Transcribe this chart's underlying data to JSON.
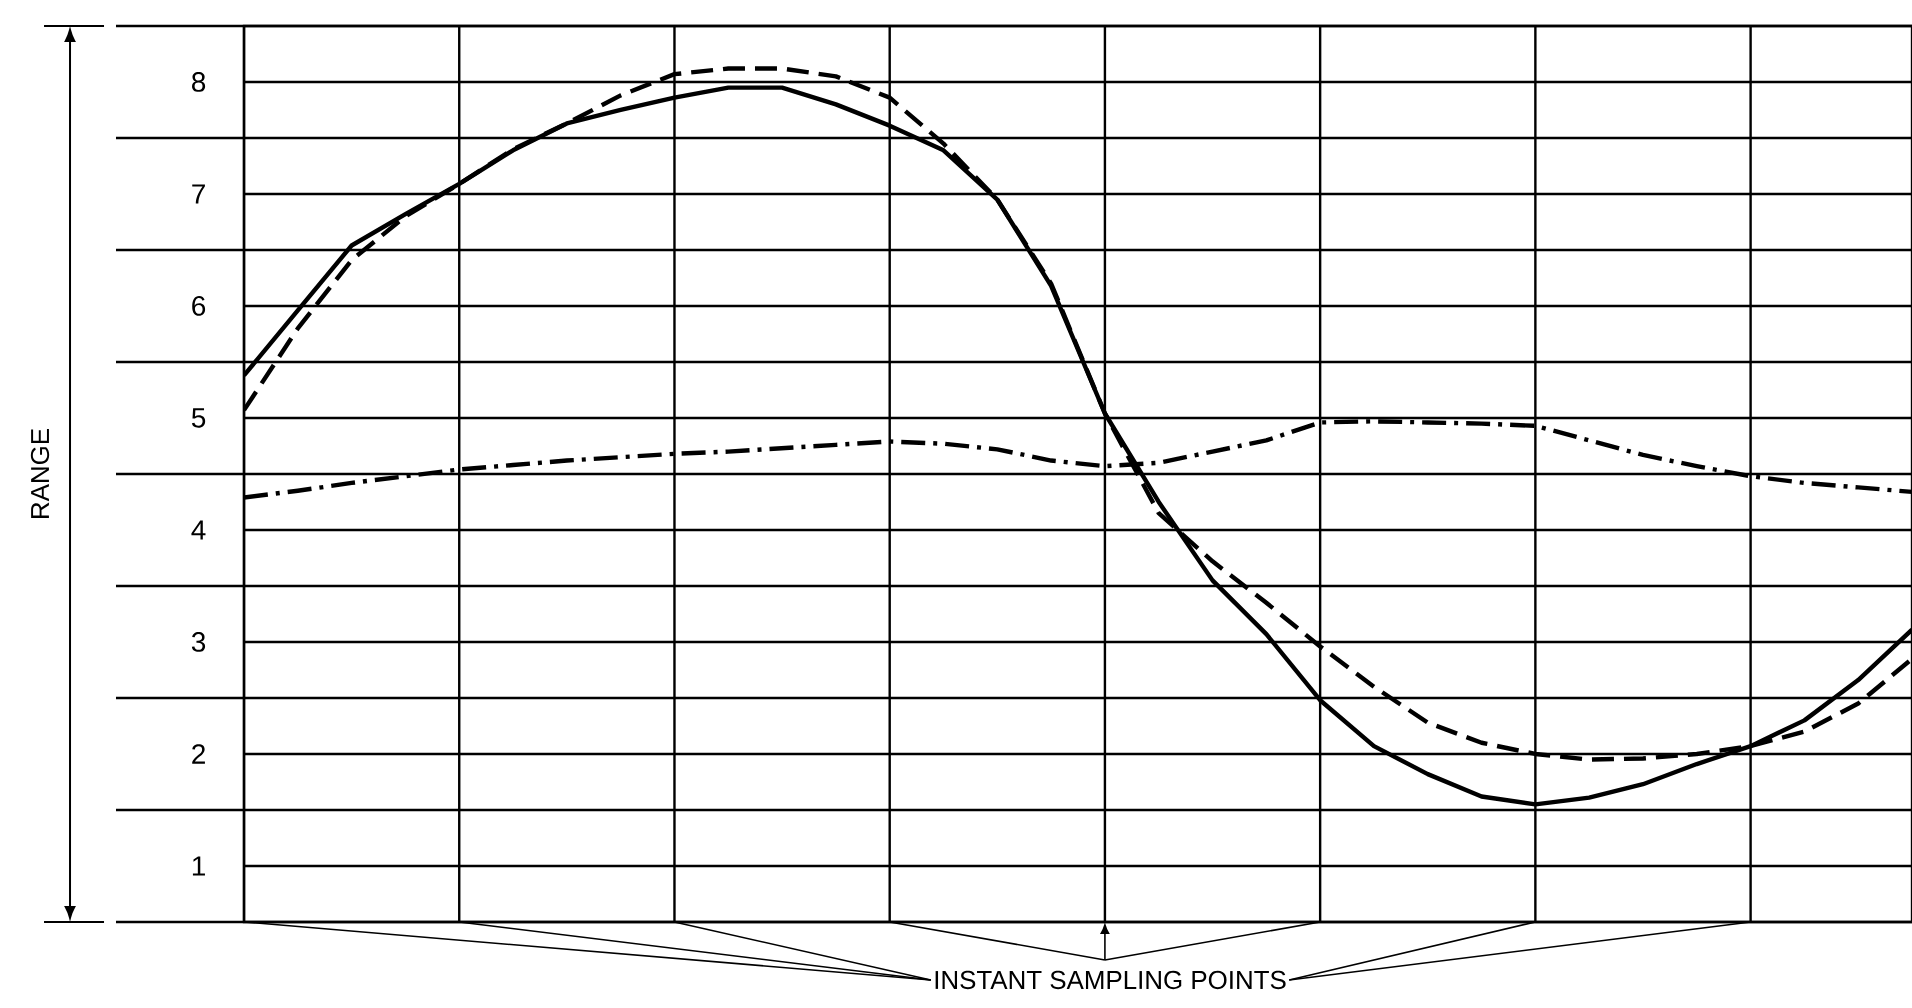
{
  "chart_data": {
    "type": "line",
    "annotations": [
      "INSTANT SAMPLING POINTS",
      "RANGE"
    ],
    "grid": true,
    "tick_labels": "y",
    "categories": [
      null,
      null,
      null,
      null,
      null,
      null,
      null,
      null,
      null,
      null,
      null,
      null,
      null,
      null,
      null,
      null,
      null,
      null,
      null,
      null,
      null,
      null,
      null,
      null,
      null,
      null,
      null,
      null,
      null,
      null,
      null,
      null
    ],
    "ylim": [
      0.5,
      8.5
    ],
    "yticks": [
      {
        "value": 0.5,
        "label": null
      },
      1,
      {
        "value": 1.5,
        "label": null
      },
      2,
      {
        "value": 2.5,
        "label": null
      },
      3,
      {
        "value": 3.5,
        "label": null
      },
      4,
      {
        "value": 4.5,
        "label": null
      },
      5,
      {
        "value": 5.5,
        "label": null
      },
      6,
      {
        "value": 6.5,
        "label": null
      },
      7,
      {
        "value": 7.5,
        "label": null
      },
      8,
      {
        "value": 8.5,
        "label": null
      }
    ],
    "series": [
      {
        "color": "#000000",
        "line_style": "solid",
        "values": [
          5.38,
          5.96,
          6.54,
          6.82,
          7.09,
          7.39,
          7.63,
          7.75,
          7.86,
          7.95,
          7.95,
          7.8,
          7.61,
          7.39,
          6.95,
          6.18,
          5.04,
          4.25,
          3.55,
          3.07,
          2.48,
          2.07,
          1.82,
          1.62,
          1.55,
          1.61,
          1.73,
          1.91,
          2.07,
          2.3,
          2.66,
          3.11
        ]
      },
      {
        "color": "#000000",
        "line_style": "dashed",
        "values": [
          5.07,
          5.8,
          6.41,
          6.8,
          7.09,
          7.4,
          7.63,
          7.88,
          8.07,
          8.12,
          8.12,
          8.05,
          7.86,
          7.45,
          6.95,
          6.2,
          5.04,
          4.15,
          3.72,
          3.35,
          2.96,
          2.6,
          2.28,
          2.1,
          2.0,
          1.95,
          1.96,
          2.0,
          2.07,
          2.2,
          2.45,
          2.85
        ]
      },
      {
        "color": "#000000",
        "line_style": "dashdot",
        "values": [
          4.29,
          4.35,
          4.42,
          4.48,
          4.54,
          4.58,
          4.62,
          4.65,
          4.68,
          4.7,
          4.73,
          4.76,
          4.79,
          4.77,
          4.72,
          4.62,
          4.57,
          4.6,
          4.7,
          4.8,
          4.96,
          4.97,
          4.96,
          4.95,
          4.93,
          4.8,
          4.67,
          4.57,
          4.48,
          4.42,
          4.38,
          4.34
        ]
      }
    ]
  }
}
